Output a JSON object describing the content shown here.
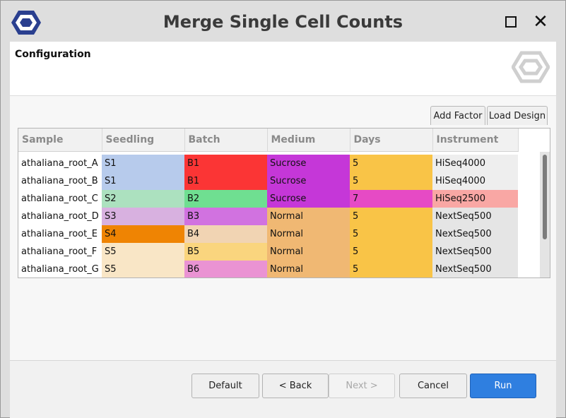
{
  "window": {
    "title": "Merge Single Cell Counts"
  },
  "header": {
    "section_title": "Configuration",
    "logo_icon": "hexagon-logo-icon"
  },
  "toolbar": {
    "add_factor_label": "Add Factor",
    "load_design_label": "Load Design"
  },
  "table": {
    "columns": [
      "Sample",
      "Seedling",
      "Batch",
      "Medium",
      "Days",
      "Instrument"
    ],
    "rows": [
      {
        "sample": "athaliana_root_A",
        "seedling": "S1",
        "batch": "B1",
        "medium": "Sucrose",
        "days": "5",
        "instrument": "HiSeq4000",
        "colors": {
          "seedling": "#b7cbec",
          "batch": "#fb3535",
          "medium": "#c537d8",
          "days": "#f9c447",
          "instrument": "#eeeeee"
        }
      },
      {
        "sample": "athaliana_root_B",
        "seedling": "S1",
        "batch": "B1",
        "medium": "Sucrose",
        "days": "5",
        "instrument": "HiSeq4000",
        "colors": {
          "seedling": "#b7cbec",
          "batch": "#fb3535",
          "medium": "#c537d8",
          "days": "#f9c447",
          "instrument": "#eeeeee"
        }
      },
      {
        "sample": "athaliana_root_C",
        "seedling": "S2",
        "batch": "B2",
        "medium": "Sucrose",
        "days": "7",
        "instrument": "HiSeq2500",
        "colors": {
          "seedling": "#ace1bf",
          "batch": "#6fdf91",
          "medium": "#c537d8",
          "days": "#e64ac5",
          "instrument": "#f9a7a4"
        }
      },
      {
        "sample": "athaliana_root_D",
        "seedling": "S3",
        "batch": "B3",
        "medium": "Normal",
        "days": "5",
        "instrument": "NextSeq500",
        "colors": {
          "seedling": "#d8b1e0",
          "batch": "#d172e0",
          "medium": "#f0b873",
          "days": "#f9c447",
          "instrument": "#e5e5e5"
        }
      },
      {
        "sample": "athaliana_root_E",
        "seedling": "S4",
        "batch": "B4",
        "medium": "Normal",
        "days": "5",
        "instrument": "NextSeq500",
        "colors": {
          "seedling": "#ef8403",
          "batch": "#f1d4b3",
          "medium": "#f0b873",
          "days": "#f9c447",
          "instrument": "#e5e5e5"
        }
      },
      {
        "sample": "athaliana_root_F",
        "seedling": "S5",
        "batch": "B5",
        "medium": "Normal",
        "days": "5",
        "instrument": "NextSeq500",
        "colors": {
          "seedling": "#f9e6c6",
          "batch": "#fad57e",
          "medium": "#f0b873",
          "days": "#f9c447",
          "instrument": "#e5e5e5"
        }
      },
      {
        "sample": "athaliana_root_G",
        "seedling": "S5",
        "batch": "B6",
        "medium": "Normal",
        "days": "5",
        "instrument": "NextSeq500",
        "colors": {
          "seedling": "#f9e6c6",
          "batch": "#ea93d3",
          "medium": "#f0b873",
          "days": "#f9c447",
          "instrument": "#e5e5e5"
        }
      }
    ],
    "partial_row_colors": {
      "seedling": "#f3c2dd",
      "batch": "#3f61c8",
      "medium": "#f0b873",
      "days": "#f9c447",
      "instrument": "#e5e5e5"
    }
  },
  "footer": {
    "default_label": "Default",
    "back_label": "< Back",
    "next_label": "Next >",
    "cancel_label": "Cancel",
    "run_label": "Run"
  },
  "colors": {
    "accent": "#2f7fe0"
  }
}
